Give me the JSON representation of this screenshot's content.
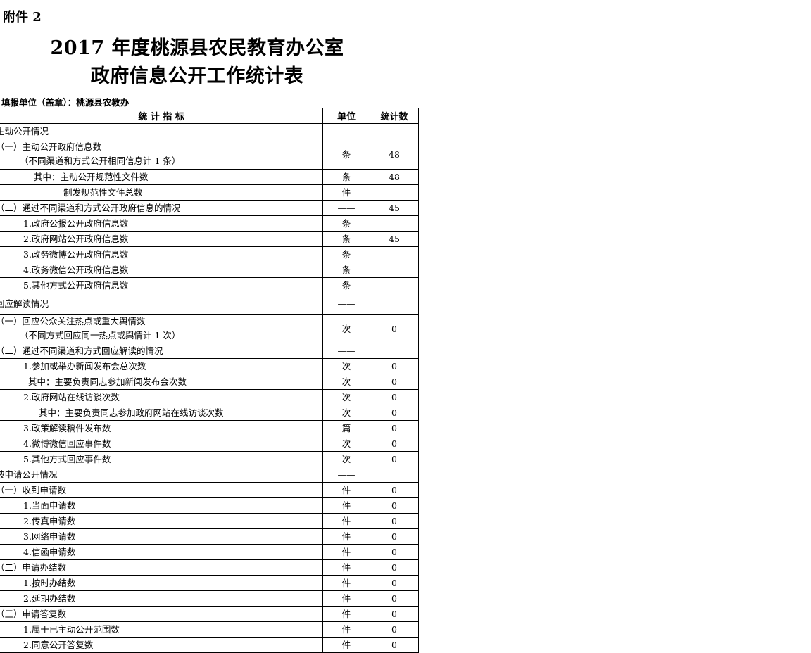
{
  "attachment_label": "附件 2",
  "title_line1": "2017 年度桃源县农民教育办公室",
  "title_line2": "政府信息公开工作统计表",
  "filling_unit": "填报单位（盖章）：桃源县农教办",
  "table": {
    "headers": {
      "indicator": "统 计 指 标",
      "unit": "单位",
      "count": "统计数"
    },
    "rows": [
      {
        "lines": [
          "主动公开情况"
        ],
        "unit": "——",
        "count": ""
      },
      {
        "lines": [
          "（一）主动公开政府信息数",
          "（不同渠道和方式公开相同信息计 1 条）"
        ],
        "unit": "条",
        "count": "48"
      },
      {
        "lines": [
          "其中：主动公开规范性文件数"
        ],
        "unit": "条",
        "count": "48"
      },
      {
        "lines": [
          "制发规范性文件总数"
        ],
        "unit": "件",
        "count": ""
      },
      {
        "lines": [
          "（二）通过不同渠道和方式公开政府信息的情况"
        ],
        "unit": "——",
        "count": "45"
      },
      {
        "lines": [
          "1.政府公报公开政府信息数"
        ],
        "unit": "条",
        "count": ""
      },
      {
        "lines": [
          "2.政府网站公开政府信息数"
        ],
        "unit": "条",
        "count": "45"
      },
      {
        "lines": [
          "3.政务微博公开政府信息数"
        ],
        "unit": "条",
        "count": ""
      },
      {
        "lines": [
          "4.政务微信公开政府信息数"
        ],
        "unit": "条",
        "count": ""
      },
      {
        "lines": [
          "5.其他方式公开政府信息数"
        ],
        "unit": "条",
        "count": ""
      },
      {
        "lines": [
          "回应解读情况"
        ],
        "unit": "——",
        "count": ""
      },
      {
        "lines": [
          "（一）回应公众关注热点或重大舆情数",
          "（不同方式回应同一热点或舆情计 1 次）"
        ],
        "unit": "次",
        "count": "0"
      },
      {
        "lines": [
          "（二）通过不同渠道和方式回应解读的情况"
        ],
        "unit": "——",
        "count": ""
      },
      {
        "lines": [
          "1.参加或举办新闻发布会总次数"
        ],
        "unit": "次",
        "count": "0"
      },
      {
        "lines": [
          "其中：主要负责同志参加新闻发布会次数"
        ],
        "unit": "次",
        "count": "0"
      },
      {
        "lines": [
          "2.政府网站在线访谈次数"
        ],
        "unit": "次",
        "count": "0"
      },
      {
        "lines": [
          "其中：主要负责同志参加政府网站在线访谈次数"
        ],
        "unit": "次",
        "count": "0"
      },
      {
        "lines": [
          "3.政策解读稿件发布数"
        ],
        "unit": "篇",
        "count": "0"
      },
      {
        "lines": [
          "4.微博微信回应事件数"
        ],
        "unit": "次",
        "count": "0"
      },
      {
        "lines": [
          "5.其他方式回应事件数"
        ],
        "unit": "次",
        "count": "0"
      },
      {
        "lines": [
          "被申请公开情况"
        ],
        "unit": "——",
        "count": ""
      },
      {
        "lines": [
          "（一）收到申请数"
        ],
        "unit": "件",
        "count": "0"
      },
      {
        "lines": [
          "1.当面申请数"
        ],
        "unit": "件",
        "count": "0"
      },
      {
        "lines": [
          "2.传真申请数"
        ],
        "unit": "件",
        "count": "0"
      },
      {
        "lines": [
          "3.网络申请数"
        ],
        "unit": "件",
        "count": "0"
      },
      {
        "lines": [
          "4.信函申请数"
        ],
        "unit": "件",
        "count": "0"
      },
      {
        "lines": [
          "（二）申请办结数"
        ],
        "unit": "件",
        "count": "0"
      },
      {
        "lines": [
          "1.按时办结数"
        ],
        "unit": "件",
        "count": "0"
      },
      {
        "lines": [
          "2.延期办结数"
        ],
        "unit": "件",
        "count": "0"
      },
      {
        "lines": [
          "（三）申请答复数"
        ],
        "unit": "件",
        "count": "0"
      },
      {
        "lines": [
          "1.属于已主动公开范围数"
        ],
        "unit": "件",
        "count": "0"
      },
      {
        "lines": [
          "2.同意公开答复数"
        ],
        "unit": "件",
        "count": "0"
      }
    ]
  }
}
